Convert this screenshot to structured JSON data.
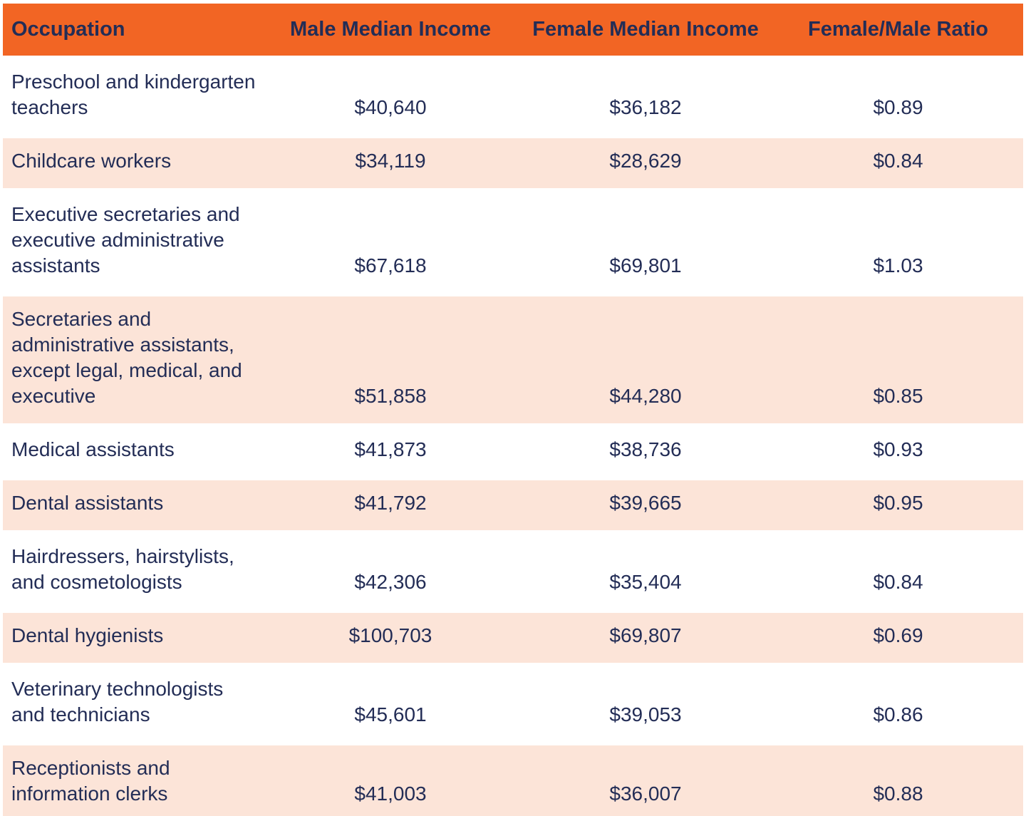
{
  "colors": {
    "header_bg": "#f26524",
    "row_alt_bg": "#fce4d8",
    "row_bg": "#ffffff",
    "text": "#232d56"
  },
  "chart_data": {
    "type": "table",
    "title": "",
    "columns": [
      "Occupation",
      "Male Median Income",
      "Female Median Income",
      "Female/Male Ratio"
    ],
    "rows": [
      [
        "Preschool and kindergarten teachers",
        "$40,640",
        "$36,182",
        "$0.89"
      ],
      [
        "Childcare workers",
        "$34,119",
        "$28,629",
        "$0.84"
      ],
      [
        "Executive secretaries and executive administrative assistants",
        "$67,618",
        "$69,801",
        "$1.03"
      ],
      [
        "Secretaries and administrative assistants, except legal, medical, and executive",
        "$51,858",
        "$44,280",
        "$0.85"
      ],
      [
        "Medical assistants",
        "$41,873",
        "$38,736",
        "$0.93"
      ],
      [
        "Dental assistants",
        "$41,792",
        "$39,665",
        "$0.95"
      ],
      [
        "Hairdressers, hairstylists, and cosmetologists",
        "$42,306",
        "$35,404",
        "$0.84"
      ],
      [
        "Dental hygienists",
        "$100,703",
        "$69,807",
        "$0.69"
      ],
      [
        "Veterinary technologists and technicians",
        "$45,601",
        "$39,053",
        "$0.86"
      ],
      [
        "Receptionists and information clerks",
        "$41,003",
        "$36,007",
        "$0.88"
      ]
    ],
    "layout": {
      "header_row_highlight": true,
      "zebra_striping": true,
      "value_columns_align": "center",
      "occupation_column_align": "left"
    }
  }
}
